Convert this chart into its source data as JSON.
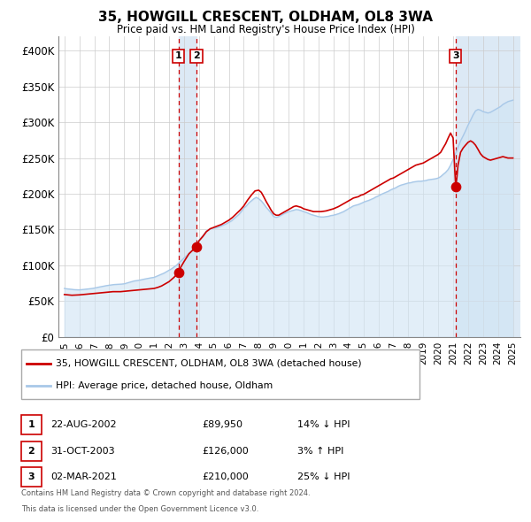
{
  "title": "35, HOWGILL CRESCENT, OLDHAM, OL8 3WA",
  "subtitle": "Price paid vs. HM Land Registry's House Price Index (HPI)",
  "legend_line1": "35, HOWGILL CRESCENT, OLDHAM, OL8 3WA (detached house)",
  "legend_line2": "HPI: Average price, detached house, Oldham",
  "footer1": "Contains HM Land Registry data © Crown copyright and database right 2024.",
  "footer2": "This data is licensed under the Open Government Licence v3.0.",
  "transactions": [
    {
      "id": 1,
      "date": "22-AUG-2002",
      "price": 89950,
      "pct": "14%",
      "dir": "↓",
      "year_x": 2002.64
    },
    {
      "id": 2,
      "date": "31-OCT-2003",
      "price": 126000,
      "pct": "3%",
      "dir": "↑",
      "year_x": 2003.83
    },
    {
      "id": 3,
      "date": "02-MAR-2021",
      "price": 210000,
      "pct": "25%",
      "dir": "↓",
      "year_x": 2021.17
    }
  ],
  "hpi_color": "#a8c8e8",
  "hpi_fill_color": "#d0e4f4",
  "price_color": "#cc0000",
  "vline_color": "#cc0000",
  "shade_color": "#dce9f5",
  "ylim": [
    0,
    420000
  ],
  "yticks": [
    0,
    50000,
    100000,
    150000,
    200000,
    250000,
    300000,
    350000,
    400000
  ],
  "ytick_labels": [
    "£0",
    "£50K",
    "£100K",
    "£150K",
    "£200K",
    "£250K",
    "£300K",
    "£350K",
    "£400K"
  ],
  "xlim_start": 1994.6,
  "xlim_end": 2025.5,
  "xticks": [
    1995,
    1996,
    1997,
    1998,
    1999,
    2000,
    2001,
    2002,
    2003,
    2004,
    2005,
    2006,
    2007,
    2008,
    2009,
    2010,
    2011,
    2012,
    2013,
    2014,
    2015,
    2016,
    2017,
    2018,
    2019,
    2020,
    2021,
    2022,
    2023,
    2024,
    2025
  ],
  "hpi_data": [
    [
      1995.0,
      67500
    ],
    [
      1995.08,
      67200
    ],
    [
      1995.17,
      67000
    ],
    [
      1995.25,
      66800
    ],
    [
      1995.33,
      66600
    ],
    [
      1995.42,
      66400
    ],
    [
      1995.5,
      66200
    ],
    [
      1995.58,
      66000
    ],
    [
      1995.67,
      65800
    ],
    [
      1995.75,
      65700
    ],
    [
      1995.83,
      65600
    ],
    [
      1995.92,
      65500
    ],
    [
      1996.0,
      65500
    ],
    [
      1996.17,
      65800
    ],
    [
      1996.33,
      66200
    ],
    [
      1996.5,
      66600
    ],
    [
      1996.67,
      67000
    ],
    [
      1996.83,
      67400
    ],
    [
      1997.0,
      68000
    ],
    [
      1997.17,
      68800
    ],
    [
      1997.33,
      69500
    ],
    [
      1997.5,
      70200
    ],
    [
      1997.67,
      71000
    ],
    [
      1997.83,
      71500
    ],
    [
      1998.0,
      72000
    ],
    [
      1998.17,
      72500
    ],
    [
      1998.33,
      73000
    ],
    [
      1998.5,
      73200
    ],
    [
      1998.67,
      73400
    ],
    [
      1998.83,
      73600
    ],
    [
      1999.0,
      74000
    ],
    [
      1999.17,
      75000
    ],
    [
      1999.33,
      76000
    ],
    [
      1999.5,
      77000
    ],
    [
      1999.67,
      78000
    ],
    [
      1999.83,
      78500
    ],
    [
      2000.0,
      79000
    ],
    [
      2000.17,
      79800
    ],
    [
      2000.33,
      80500
    ],
    [
      2000.5,
      81200
    ],
    [
      2000.67,
      82000
    ],
    [
      2000.83,
      82500
    ],
    [
      2001.0,
      83000
    ],
    [
      2001.17,
      84500
    ],
    [
      2001.33,
      86000
    ],
    [
      2001.5,
      87500
    ],
    [
      2001.67,
      89000
    ],
    [
      2001.83,
      91000
    ],
    [
      2002.0,
      93000
    ],
    [
      2002.17,
      95000
    ],
    [
      2002.33,
      97500
    ],
    [
      2002.5,
      100000
    ],
    [
      2002.64,
      103000
    ],
    [
      2002.67,
      103500
    ],
    [
      2002.83,
      106500
    ],
    [
      2003.0,
      110000
    ],
    [
      2003.17,
      113000
    ],
    [
      2003.33,
      116500
    ],
    [
      2003.5,
      120000
    ],
    [
      2003.67,
      124000
    ],
    [
      2003.83,
      128000
    ],
    [
      2004.0,
      135000
    ],
    [
      2004.17,
      139000
    ],
    [
      2004.33,
      143000
    ],
    [
      2004.5,
      148000
    ],
    [
      2004.67,
      150000
    ],
    [
      2004.83,
      151500
    ],
    [
      2005.0,
      152000
    ],
    [
      2005.17,
      152500
    ],
    [
      2005.33,
      153500
    ],
    [
      2005.5,
      155000
    ],
    [
      2005.67,
      156500
    ],
    [
      2005.83,
      158000
    ],
    [
      2006.0,
      160000
    ],
    [
      2006.17,
      162000
    ],
    [
      2006.33,
      165000
    ],
    [
      2006.5,
      168000
    ],
    [
      2006.67,
      171000
    ],
    [
      2006.83,
      175000
    ],
    [
      2007.0,
      180000
    ],
    [
      2007.17,
      183000
    ],
    [
      2007.33,
      187000
    ],
    [
      2007.5,
      190000
    ],
    [
      2007.67,
      193000
    ],
    [
      2007.83,
      195000
    ],
    [
      2008.0,
      193000
    ],
    [
      2008.17,
      190000
    ],
    [
      2008.33,
      186000
    ],
    [
      2008.5,
      181000
    ],
    [
      2008.67,
      177000
    ],
    [
      2008.83,
      173000
    ],
    [
      2009.0,
      168000
    ],
    [
      2009.17,
      167000
    ],
    [
      2009.33,
      168000
    ],
    [
      2009.5,
      170000
    ],
    [
      2009.67,
      172000
    ],
    [
      2009.83,
      173500
    ],
    [
      2010.0,
      175000
    ],
    [
      2010.17,
      176000
    ],
    [
      2010.33,
      177000
    ],
    [
      2010.5,
      178000
    ],
    [
      2010.67,
      177500
    ],
    [
      2010.83,
      176500
    ],
    [
      2011.0,
      175000
    ],
    [
      2011.17,
      174000
    ],
    [
      2011.33,
      172500
    ],
    [
      2011.5,
      171000
    ],
    [
      2011.67,
      170000
    ],
    [
      2011.83,
      169000
    ],
    [
      2012.0,
      168000
    ],
    [
      2012.17,
      167500
    ],
    [
      2012.33,
      167500
    ],
    [
      2012.5,
      168000
    ],
    [
      2012.67,
      168500
    ],
    [
      2012.83,
      169500
    ],
    [
      2013.0,
      170000
    ],
    [
      2013.17,
      171000
    ],
    [
      2013.33,
      172000
    ],
    [
      2013.5,
      173500
    ],
    [
      2013.67,
      175000
    ],
    [
      2013.83,
      177000
    ],
    [
      2014.0,
      179000
    ],
    [
      2014.17,
      181000
    ],
    [
      2014.33,
      183000
    ],
    [
      2014.5,
      184000
    ],
    [
      2014.67,
      185000
    ],
    [
      2014.83,
      186500
    ],
    [
      2015.0,
      188000
    ],
    [
      2015.17,
      189500
    ],
    [
      2015.33,
      190500
    ],
    [
      2015.5,
      192000
    ],
    [
      2015.67,
      193500
    ],
    [
      2015.83,
      195500
    ],
    [
      2016.0,
      197000
    ],
    [
      2016.17,
      199000
    ],
    [
      2016.33,
      200500
    ],
    [
      2016.5,
      202000
    ],
    [
      2016.67,
      203500
    ],
    [
      2016.83,
      205500
    ],
    [
      2017.0,
      207000
    ],
    [
      2017.17,
      208500
    ],
    [
      2017.33,
      210500
    ],
    [
      2017.5,
      212000
    ],
    [
      2017.67,
      213000
    ],
    [
      2017.83,
      214000
    ],
    [
      2018.0,
      215000
    ],
    [
      2018.17,
      215500
    ],
    [
      2018.33,
      216500
    ],
    [
      2018.5,
      217000
    ],
    [
      2018.67,
      217500
    ],
    [
      2018.83,
      217500
    ],
    [
      2019.0,
      218000
    ],
    [
      2019.17,
      218500
    ],
    [
      2019.33,
      219500
    ],
    [
      2019.5,
      220000
    ],
    [
      2019.67,
      220500
    ],
    [
      2019.83,
      221000
    ],
    [
      2020.0,
      222000
    ],
    [
      2020.17,
      224000
    ],
    [
      2020.33,
      227000
    ],
    [
      2020.5,
      230000
    ],
    [
      2020.67,
      234000
    ],
    [
      2020.83,
      240000
    ],
    [
      2021.0,
      248000
    ],
    [
      2021.17,
      257000
    ],
    [
      2021.33,
      265000
    ],
    [
      2021.5,
      274000
    ],
    [
      2021.67,
      281000
    ],
    [
      2021.83,
      288000
    ],
    [
      2022.0,
      296000
    ],
    [
      2022.17,
      303000
    ],
    [
      2022.33,
      310000
    ],
    [
      2022.5,
      316000
    ],
    [
      2022.67,
      318000
    ],
    [
      2022.83,
      317000
    ],
    [
      2023.0,
      315000
    ],
    [
      2023.17,
      314000
    ],
    [
      2023.33,
      313000
    ],
    [
      2023.5,
      314000
    ],
    [
      2023.67,
      316000
    ],
    [
      2023.83,
      318000
    ],
    [
      2024.0,
      320000
    ],
    [
      2024.17,
      322000
    ],
    [
      2024.33,
      325000
    ],
    [
      2024.5,
      327000
    ],
    [
      2024.67,
      329000
    ],
    [
      2024.83,
      330000
    ],
    [
      2025.0,
      331000
    ]
  ],
  "price_data": [
    [
      1995.0,
      59000
    ],
    [
      1995.25,
      58500
    ],
    [
      1995.5,
      58000
    ],
    [
      1995.75,
      58200
    ],
    [
      1996.0,
      58500
    ],
    [
      1996.25,
      59000
    ],
    [
      1996.5,
      59500
    ],
    [
      1996.75,
      60000
    ],
    [
      1997.0,
      60500
    ],
    [
      1997.25,
      61000
    ],
    [
      1997.5,
      61500
    ],
    [
      1997.75,
      62000
    ],
    [
      1998.0,
      62500
    ],
    [
      1998.25,
      63000
    ],
    [
      1998.5,
      63000
    ],
    [
      1998.75,
      63000
    ],
    [
      1999.0,
      63500
    ],
    [
      1999.25,
      64000
    ],
    [
      1999.5,
      64500
    ],
    [
      1999.75,
      65000
    ],
    [
      2000.0,
      65500
    ],
    [
      2000.25,
      66000
    ],
    [
      2000.5,
      66500
    ],
    [
      2000.75,
      67000
    ],
    [
      2001.0,
      67500
    ],
    [
      2001.25,
      69000
    ],
    [
      2001.5,
      71000
    ],
    [
      2001.75,
      74000
    ],
    [
      2002.0,
      77000
    ],
    [
      2002.33,
      83000
    ],
    [
      2002.64,
      89950
    ],
    [
      2002.75,
      96000
    ],
    [
      2003.0,
      105000
    ],
    [
      2003.33,
      116000
    ],
    [
      2003.83,
      126000
    ],
    [
      2004.0,
      134000
    ],
    [
      2004.25,
      140000
    ],
    [
      2004.5,
      147000
    ],
    [
      2004.75,
      151000
    ],
    [
      2005.0,
      153000
    ],
    [
      2005.25,
      155000
    ],
    [
      2005.5,
      157000
    ],
    [
      2005.75,
      160000
    ],
    [
      2006.0,
      163000
    ],
    [
      2006.25,
      167000
    ],
    [
      2006.5,
      172000
    ],
    [
      2006.75,
      177000
    ],
    [
      2007.0,
      183000
    ],
    [
      2007.25,
      191000
    ],
    [
      2007.5,
      198000
    ],
    [
      2007.75,
      204000
    ],
    [
      2008.0,
      205000
    ],
    [
      2008.17,
      202000
    ],
    [
      2008.33,
      196000
    ],
    [
      2008.5,
      189000
    ],
    [
      2008.67,
      183000
    ],
    [
      2008.83,
      177000
    ],
    [
      2009.0,
      172000
    ],
    [
      2009.17,
      170000
    ],
    [
      2009.33,
      170000
    ],
    [
      2009.5,
      172000
    ],
    [
      2009.67,
      174000
    ],
    [
      2009.83,
      176000
    ],
    [
      2010.0,
      178000
    ],
    [
      2010.17,
      180000
    ],
    [
      2010.33,
      182000
    ],
    [
      2010.5,
      183000
    ],
    [
      2010.67,
      182000
    ],
    [
      2010.83,
      181000
    ],
    [
      2011.0,
      179000
    ],
    [
      2011.17,
      178000
    ],
    [
      2011.33,
      177000
    ],
    [
      2011.5,
      176000
    ],
    [
      2011.67,
      175000
    ],
    [
      2011.83,
      175000
    ],
    [
      2012.0,
      175000
    ],
    [
      2012.17,
      175000
    ],
    [
      2012.33,
      175500
    ],
    [
      2012.5,
      176000
    ],
    [
      2012.67,
      177000
    ],
    [
      2012.83,
      178000
    ],
    [
      2013.0,
      179000
    ],
    [
      2013.17,
      180500
    ],
    [
      2013.33,
      182000
    ],
    [
      2013.5,
      184000
    ],
    [
      2013.67,
      186000
    ],
    [
      2013.83,
      188000
    ],
    [
      2014.0,
      190000
    ],
    [
      2014.17,
      192000
    ],
    [
      2014.33,
      194000
    ],
    [
      2014.5,
      195000
    ],
    [
      2014.67,
      196000
    ],
    [
      2014.83,
      198000
    ],
    [
      2015.0,
      199000
    ],
    [
      2015.17,
      201000
    ],
    [
      2015.33,
      203000
    ],
    [
      2015.5,
      205000
    ],
    [
      2015.67,
      207000
    ],
    [
      2015.83,
      209000
    ],
    [
      2016.0,
      211000
    ],
    [
      2016.17,
      213000
    ],
    [
      2016.33,
      215000
    ],
    [
      2016.5,
      217000
    ],
    [
      2016.67,
      219000
    ],
    [
      2016.83,
      221000
    ],
    [
      2017.0,
      222000
    ],
    [
      2017.17,
      224000
    ],
    [
      2017.33,
      226000
    ],
    [
      2017.5,
      228000
    ],
    [
      2017.67,
      230000
    ],
    [
      2017.83,
      232000
    ],
    [
      2018.0,
      234000
    ],
    [
      2018.17,
      236000
    ],
    [
      2018.33,
      238000
    ],
    [
      2018.5,
      240000
    ],
    [
      2018.67,
      241000
    ],
    [
      2018.83,
      242000
    ],
    [
      2019.0,
      243000
    ],
    [
      2019.17,
      245000
    ],
    [
      2019.33,
      247000
    ],
    [
      2019.5,
      249000
    ],
    [
      2019.67,
      251000
    ],
    [
      2019.83,
      253000
    ],
    [
      2020.0,
      255000
    ],
    [
      2020.17,
      258000
    ],
    [
      2020.33,
      264000
    ],
    [
      2020.5,
      270000
    ],
    [
      2020.67,
      278000
    ],
    [
      2020.83,
      285000
    ],
    [
      2021.0,
      278000
    ],
    [
      2021.17,
      210000
    ],
    [
      2021.25,
      222000
    ],
    [
      2021.33,
      240000
    ],
    [
      2021.5,
      258000
    ],
    [
      2021.67,
      264000
    ],
    [
      2021.83,
      268000
    ],
    [
      2022.0,
      272000
    ],
    [
      2022.17,
      274000
    ],
    [
      2022.33,
      272000
    ],
    [
      2022.5,
      268000
    ],
    [
      2022.67,
      262000
    ],
    [
      2022.83,
      256000
    ],
    [
      2023.0,
      252000
    ],
    [
      2023.17,
      250000
    ],
    [
      2023.33,
      248000
    ],
    [
      2023.5,
      247000
    ],
    [
      2023.67,
      248000
    ],
    [
      2023.83,
      249000
    ],
    [
      2024.0,
      250000
    ],
    [
      2024.17,
      251000
    ],
    [
      2024.33,
      252000
    ],
    [
      2024.5,
      251000
    ],
    [
      2024.67,
      250000
    ],
    [
      2024.83,
      250000
    ],
    [
      2025.0,
      250000
    ]
  ]
}
